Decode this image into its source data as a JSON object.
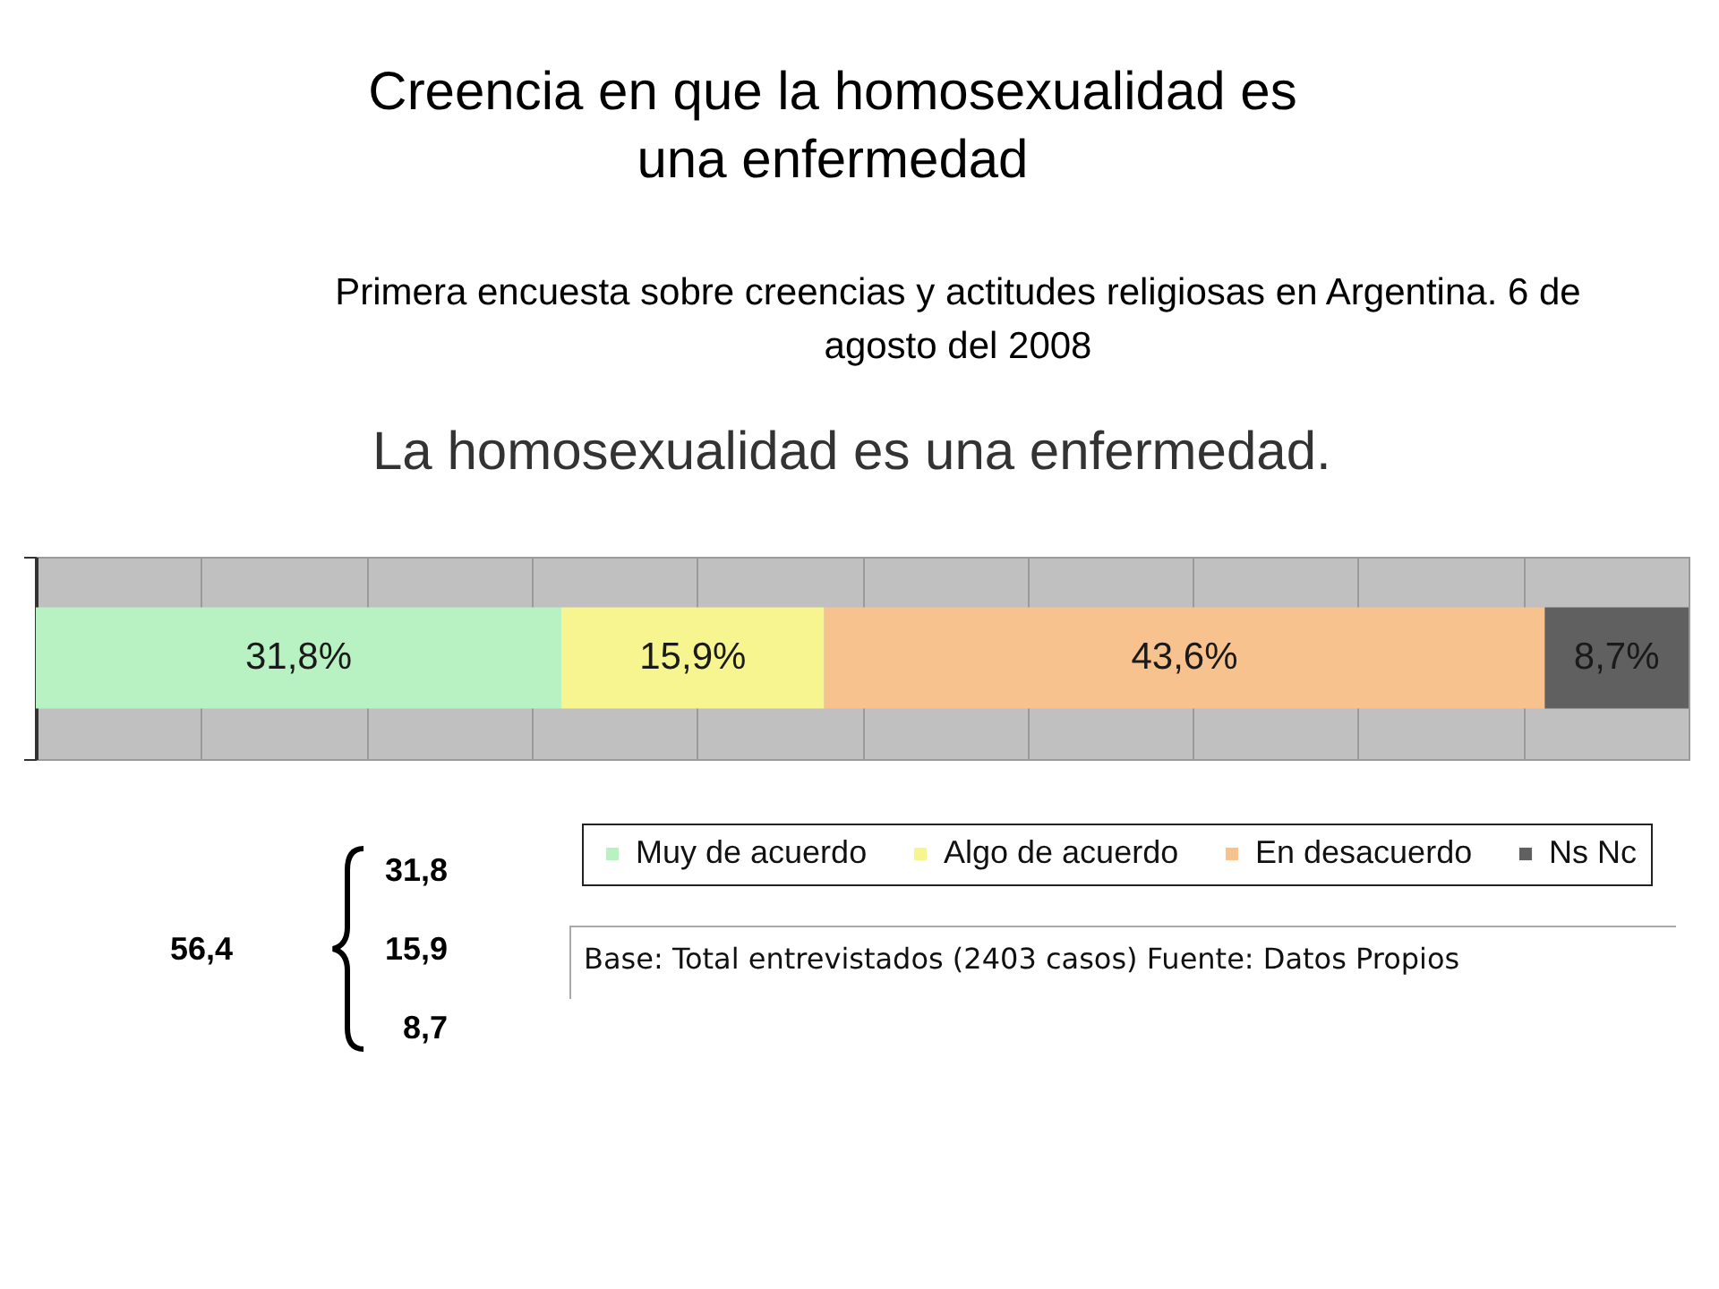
{
  "chart_data": {
    "type": "bar",
    "title": "Creencia en que la homosexualidad es una enfermedad",
    "subtitle": "Primera encuesta sobre creencias y actitudes religiosas en Argentina. 6 de agosto del 2008",
    "categories": [
      null
    ],
    "series": [
      {
        "name": "Muy de acuerdo",
        "color": "#b8f2c2",
        "values": [
          31.8
        ],
        "value_labels": [
          "31,8%"
        ]
      },
      {
        "name": "Algo de acuerdo",
        "color": "#f6f58f",
        "values": [
          15.9
        ],
        "value_labels": [
          "15,9%"
        ]
      },
      {
        "name": "En desacuerdo",
        "color": "#f8c28e",
        "values": [
          43.6
        ],
        "value_labels": [
          "43,6%"
        ]
      },
      {
        "name": "Ns Nc",
        "color": "#606060",
        "values": [
          8.7
        ],
        "value_labels": [
          "8,7%"
        ]
      }
    ],
    "stacked": true,
    "orientation": "horizontal",
    "xlim": [
      0,
      100
    ],
    "xticks": [
      {
        "value": 0,
        "label": null
      },
      {
        "value": 10,
        "label": null
      },
      {
        "value": 20,
        "label": null
      },
      {
        "value": 30,
        "label": null
      },
      {
        "value": 40,
        "label": null
      },
      {
        "value": 50,
        "label": null
      },
      {
        "value": 60,
        "label": null
      },
      {
        "value": 70,
        "label": null
      },
      {
        "value": 80,
        "label": null
      },
      {
        "value": 90,
        "label": null
      },
      {
        "value": 100,
        "label": null
      }
    ],
    "grid": "x",
    "legend": "bottom right",
    "annotations": [
      "La homosexualidad es una enfermedad.",
      "Base: Total entrevistados (2403 casos) Fuente: Datos Propios",
      "31,8",
      "15,9",
      "8,7",
      "56,4"
    ]
  }
}
